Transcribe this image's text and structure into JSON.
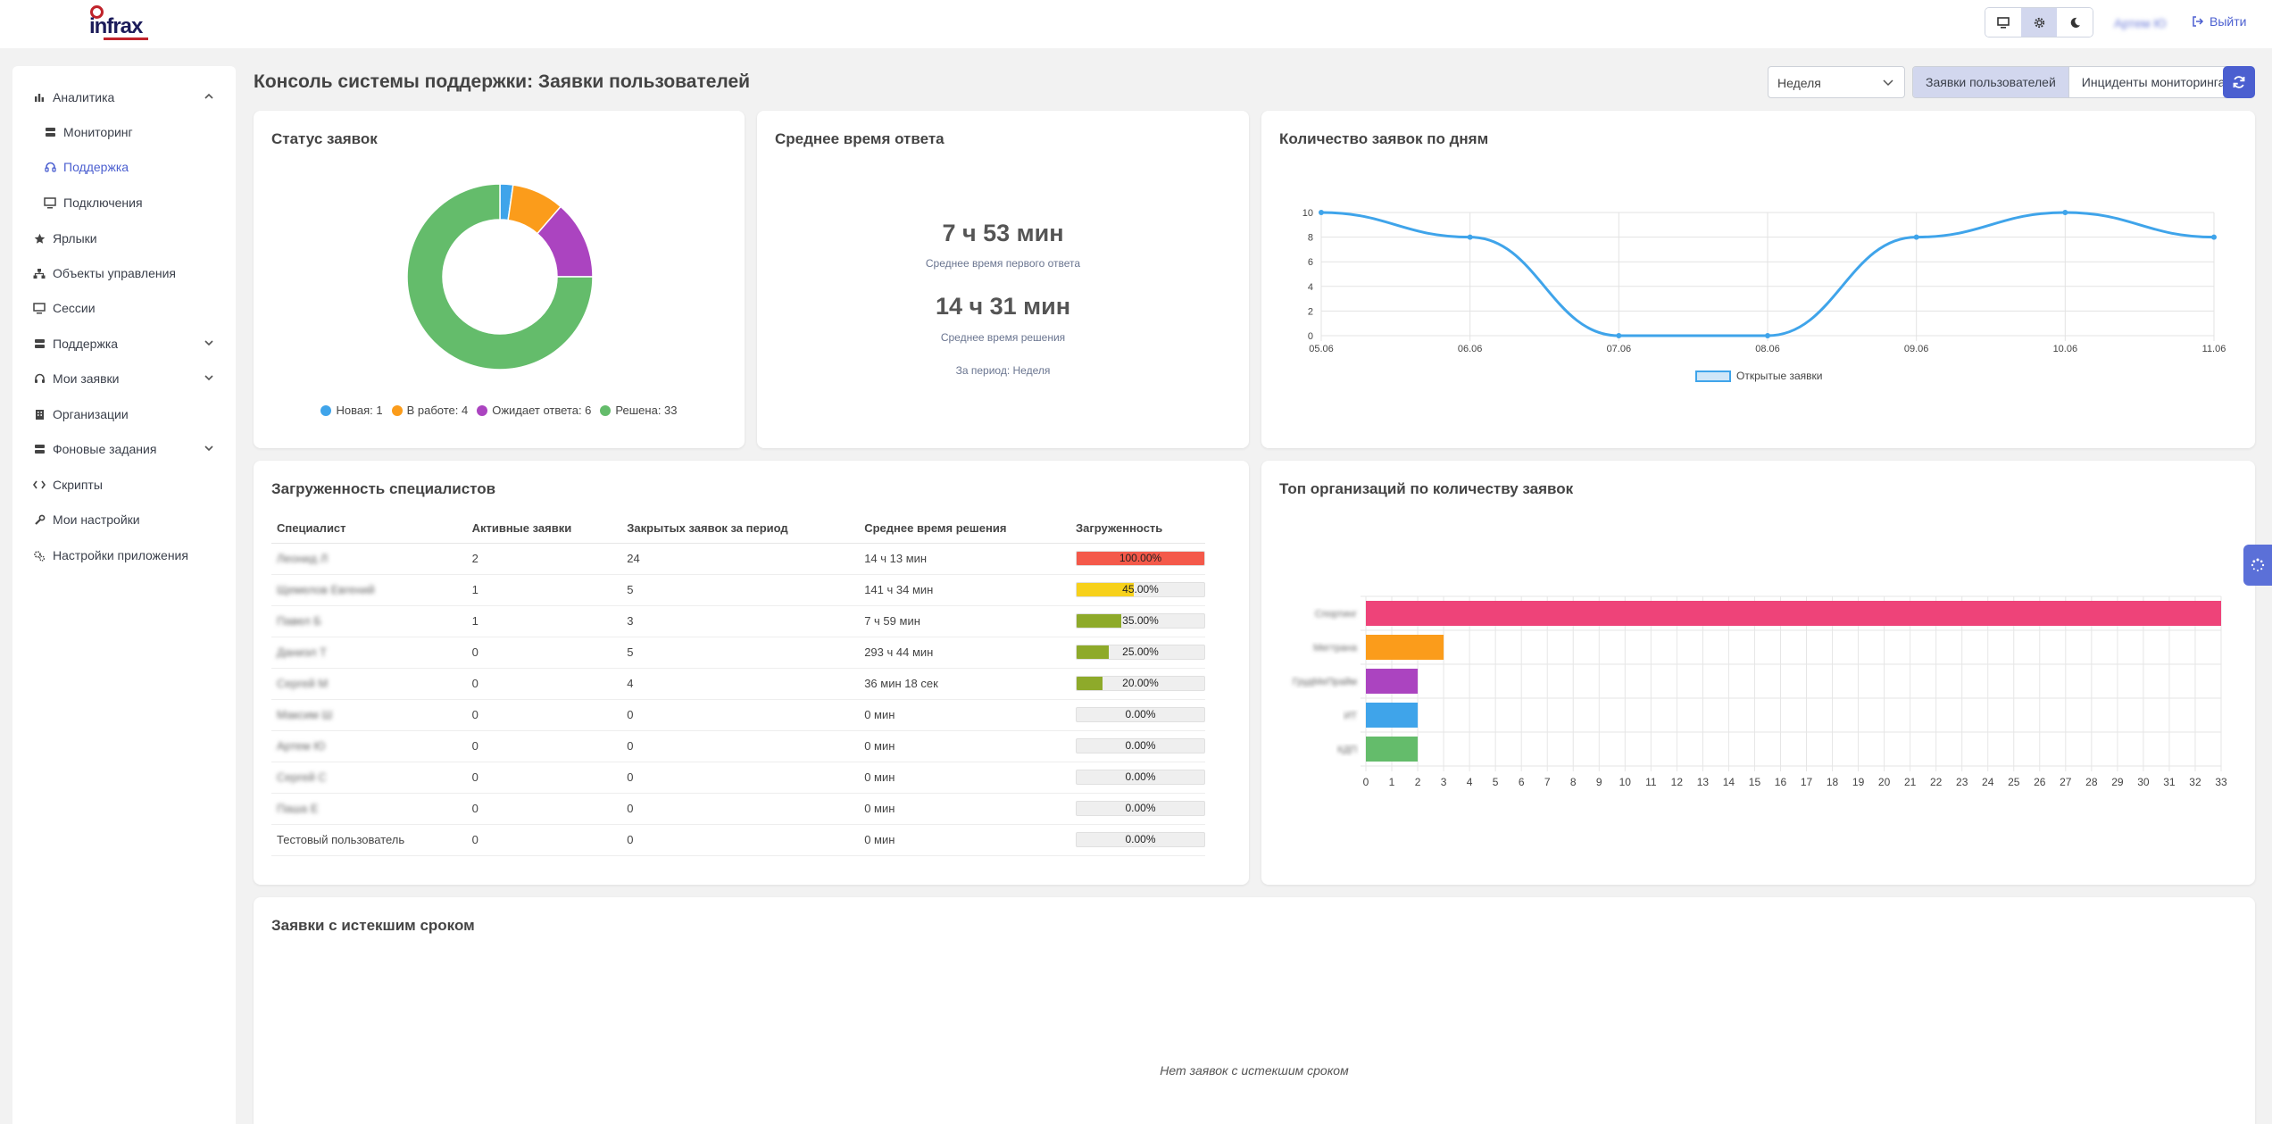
{
  "topbar": {
    "logo_text": "infrax",
    "user_name": "Артем Ю",
    "logout_label": "Выйти",
    "modes": [
      "monitor-icon",
      "gear-icon",
      "moon-icon"
    ]
  },
  "sidebar": {
    "items": [
      {
        "label": "Аналитика",
        "icon": "chart-icon"
      },
      {
        "label": "Мониторинг",
        "icon": "server-icon"
      },
      {
        "label": "Поддержка",
        "icon": "headset-icon"
      },
      {
        "label": "Подключения",
        "icon": "desktop-icon"
      },
      {
        "label": "Ярлыки",
        "icon": "star-icon"
      },
      {
        "label": "Объекты управления",
        "icon": "sitemap-icon"
      },
      {
        "label": "Сессии",
        "icon": "desktop-icon"
      },
      {
        "label": "Поддержка",
        "icon": "server-icon"
      },
      {
        "label": "Мои заявки",
        "icon": "headset-icon"
      },
      {
        "label": "Организации",
        "icon": "building-icon"
      },
      {
        "label": "Фоновые задания",
        "icon": "server-icon"
      },
      {
        "label": "Скрипты",
        "icon": "code-icon"
      },
      {
        "label": "Мои настройки",
        "icon": "wrench-icon"
      },
      {
        "label": "Настройки приложения",
        "icon": "gears-icon"
      }
    ]
  },
  "header": {
    "title": "Консоль системы поддержки: Заявки пользователей",
    "period": "Неделя",
    "tabs": [
      "Заявки пользователей",
      "Инциденты мониторинга"
    ]
  },
  "status_card": {
    "title": "Статус заявок",
    "legend": [
      "Новая: 1",
      "В работе: 4",
      "Ожидает ответа: 6",
      "Решена: 33"
    ]
  },
  "response_card": {
    "title": "Среднее время ответа",
    "first_response": "7 ч 53 мин",
    "first_response_caption": "Среднее время первого ответа",
    "resolution": "14 ч 31 мин",
    "resolution_caption": "Среднее время решения",
    "period_note": "За период: Неделя"
  },
  "daily_card": {
    "title": "Количество заявок по дням",
    "legend": "Открытые заявки"
  },
  "workload_card": {
    "title": "Загруженность специалистов",
    "columns": [
      "Специалист",
      "Активные заявки",
      "Закрытых заявок за период",
      "Среднее время решения",
      "Загруженность"
    ],
    "rows": [
      {
        "name": "Леонид Л",
        "active": "2",
        "closed": "24",
        "avg": "14 ч 13 мин",
        "load": "100.00%",
        "pct": 100,
        "color": "#f4594a",
        "blur": true
      },
      {
        "name": "Щемелов Евгений",
        "active": "1",
        "closed": "5",
        "avg": "141 ч 34 мин",
        "load": "45.00%",
        "pct": 45,
        "color": "#f7d11b",
        "blur": true
      },
      {
        "name": "Павел Б",
        "active": "1",
        "closed": "3",
        "avg": "7 ч 59 мин",
        "load": "35.00%",
        "pct": 35,
        "color": "#8eaa2a",
        "blur": true
      },
      {
        "name": "Даниэл Т",
        "active": "0",
        "closed": "5",
        "avg": "293 ч 44 мин",
        "load": "25.00%",
        "pct": 25,
        "color": "#8eaa2a",
        "blur": true
      },
      {
        "name": "Сергей М",
        "active": "0",
        "closed": "4",
        "avg": "36 мин 18 сек",
        "load": "20.00%",
        "pct": 20,
        "color": "#8eaa2a",
        "blur": true
      },
      {
        "name": "Максим Ш",
        "active": "0",
        "closed": "0",
        "avg": "0 мин",
        "load": "0.00%",
        "pct": 0,
        "color": "#8eaa2a",
        "blur": true
      },
      {
        "name": "Артем Ю",
        "active": "0",
        "closed": "0",
        "avg": "0 мин",
        "load": "0.00%",
        "pct": 0,
        "color": "#8eaa2a",
        "blur": true
      },
      {
        "name": "Сергей С",
        "active": "0",
        "closed": "0",
        "avg": "0 мин",
        "load": "0.00%",
        "pct": 0,
        "color": "#8eaa2a",
        "blur": true
      },
      {
        "name": "Паша Е",
        "active": "0",
        "closed": "0",
        "avg": "0 мин",
        "load": "0.00%",
        "pct": 0,
        "color": "#8eaa2a",
        "blur": true
      },
      {
        "name": "Тестовый пользователь",
        "active": "0",
        "closed": "0",
        "avg": "0 мин",
        "load": "0.00%",
        "pct": 0,
        "color": "#8eaa2a",
        "blur": false
      }
    ]
  },
  "orgs_card": {
    "title": "Топ организаций по количеству заявок"
  },
  "overdue_card": {
    "title": "Заявки с истекшим сроком",
    "empty": "Нет заявок с истекшим сроком"
  },
  "chart_data": [
    {
      "type": "pie",
      "labels": [
        "Новая",
        "В работе",
        "Ожидает ответа",
        "Решена"
      ],
      "values": [
        1,
        4,
        6,
        33
      ],
      "colors": [
        "#3fa4ea",
        "#fb9c1b",
        "#ab44c0",
        "#64bc6b"
      ],
      "legend": "bottom"
    },
    {
      "type": "line",
      "x": [
        "05.06",
        "06.06",
        "07.06",
        "08.06",
        "09.06",
        "10.06",
        "11.06"
      ],
      "series": [
        {
          "name": "Открытые заявки",
          "values": [
            10,
            8,
            0,
            0,
            8,
            10,
            8
          ],
          "color": "#3fa4ea"
        }
      ],
      "yticks": [
        0,
        2,
        4,
        6,
        8,
        10
      ],
      "ylim": [
        0,
        10
      ],
      "grid": true,
      "legend": "bottom"
    },
    {
      "type": "bar",
      "orientation": "horizontal",
      "categories": [
        "Спортинг",
        "Мегтрана",
        "ГрудМеПрайм",
        "ИТ",
        "КДП"
      ],
      "values": [
        33,
        3,
        2,
        2,
        2
      ],
      "colors": [
        "#ee4379",
        "#fb9c1b",
        "#ab44c0",
        "#3fa4ea",
        "#64bc6b"
      ],
      "xlim": [
        0,
        33
      ],
      "grid": true
    }
  ]
}
